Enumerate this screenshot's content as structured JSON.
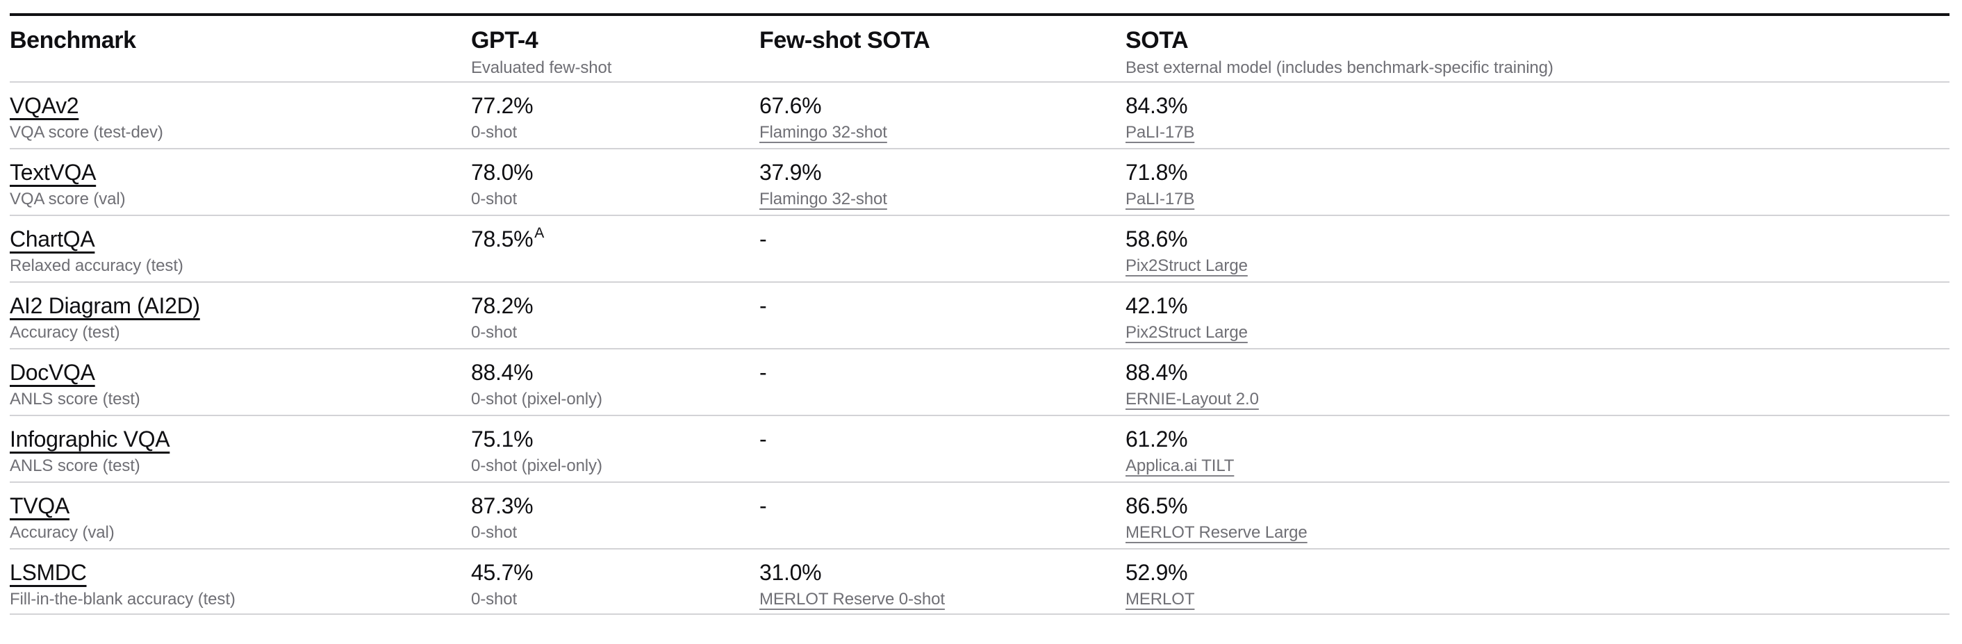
{
  "colors": {
    "background": "#ffffff",
    "text_primary": "#0f0f12",
    "text_secondary": "#6f6f75",
    "top_border": "#111114",
    "row_separator": "#d3d3d6"
  },
  "table": {
    "columns": [
      {
        "label": "Benchmark",
        "sublabel": ""
      },
      {
        "label": "GPT-4",
        "sublabel": "Evaluated few-shot"
      },
      {
        "label": "Few-shot SOTA",
        "sublabel": ""
      },
      {
        "label": "SOTA",
        "sublabel": "Best external model (includes benchmark-specific training)"
      }
    ],
    "rows": [
      {
        "benchmark": "VQAv2",
        "metric": "VQA score (test-dev)",
        "gpt4": {
          "value": "77.2%",
          "sup": "",
          "sub": "0-shot"
        },
        "few_shot_sota": {
          "value": "67.6%",
          "link": "Flamingo 32-shot"
        },
        "sota": {
          "value": "84.3%",
          "link": "PaLI-17B"
        }
      },
      {
        "benchmark": "TextVQA",
        "metric": "VQA score (val)",
        "gpt4": {
          "value": "78.0%",
          "sup": "",
          "sub": "0-shot"
        },
        "few_shot_sota": {
          "value": "37.9%",
          "link": "Flamingo 32-shot"
        },
        "sota": {
          "value": "71.8%",
          "link": "PaLI-17B"
        }
      },
      {
        "benchmark": "ChartQA",
        "metric": "Relaxed accuracy (test)",
        "gpt4": {
          "value": "78.5%",
          "sup": "A",
          "sub": ""
        },
        "few_shot_sota": {
          "value": "-",
          "link": ""
        },
        "sota": {
          "value": "58.6%",
          "link": "Pix2Struct Large"
        }
      },
      {
        "benchmark": "AI2 Diagram (AI2D)",
        "metric": "Accuracy (test)",
        "gpt4": {
          "value": "78.2%",
          "sup": "",
          "sub": "0-shot"
        },
        "few_shot_sota": {
          "value": "-",
          "link": ""
        },
        "sota": {
          "value": "42.1%",
          "link": "Pix2Struct Large"
        }
      },
      {
        "benchmark": "DocVQA",
        "metric": "ANLS score (test)",
        "gpt4": {
          "value": "88.4%",
          "sup": "",
          "sub": "0-shot (pixel-only)"
        },
        "few_shot_sota": {
          "value": "-",
          "link": ""
        },
        "sota": {
          "value": "88.4%",
          "link": "ERNIE-Layout 2.0"
        }
      },
      {
        "benchmark": "Infographic VQA",
        "metric": "ANLS score (test)",
        "gpt4": {
          "value": "75.1%",
          "sup": "",
          "sub": "0-shot (pixel-only)"
        },
        "few_shot_sota": {
          "value": "-",
          "link": ""
        },
        "sota": {
          "value": "61.2%",
          "link": "Applica.ai TILT"
        }
      },
      {
        "benchmark": "TVQA",
        "metric": "Accuracy (val)",
        "gpt4": {
          "value": "87.3%",
          "sup": "",
          "sub": "0-shot"
        },
        "few_shot_sota": {
          "value": "-",
          "link": ""
        },
        "sota": {
          "value": "86.5%",
          "link": "MERLOT Reserve Large"
        }
      },
      {
        "benchmark": "LSMDC",
        "metric": "Fill-in-the-blank accuracy (test)",
        "gpt4": {
          "value": "45.7%",
          "sup": "",
          "sub": "0-shot"
        },
        "few_shot_sota": {
          "value": "31.0%",
          "link": "MERLOT Reserve 0-shot"
        },
        "sota": {
          "value": "52.9%",
          "link": "MERLOT"
        }
      }
    ]
  }
}
